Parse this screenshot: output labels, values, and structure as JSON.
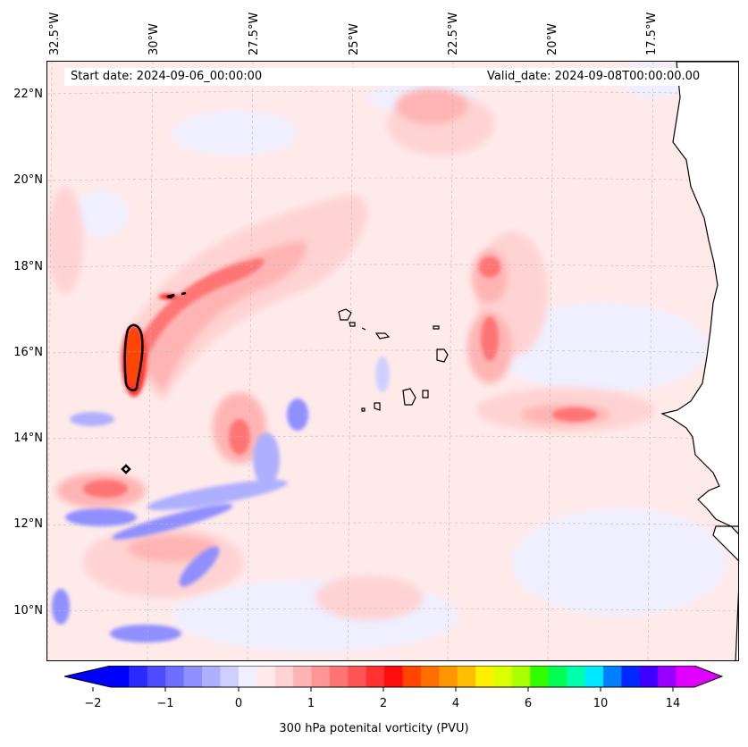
{
  "header": {
    "start_date": "Start date: 2024-09-06_00:00:00",
    "valid_date": "Valid_date: 2024-09-08T00:00:00.00"
  },
  "map": {
    "lon_ticks": [
      "32.5°W",
      "30°W",
      "27.5°W",
      "25°W",
      "22.5°W",
      "20°W",
      "17.5°W"
    ],
    "lat_ticks": [
      "22°N",
      "20°N",
      "18°N",
      "16°N",
      "14°N",
      "12°N",
      "10°N"
    ],
    "field": "300 hPa potential vorticity",
    "contour_line_color": "#000000"
  },
  "colorbar": {
    "label": "300 hPa potenital vorticity (PVU)",
    "tick_labels": [
      "−2",
      "−1",
      "0",
      "1",
      "2",
      "4",
      "6",
      "10",
      "14"
    ],
    "colors": [
      "#0000ff",
      "#2a2aff",
      "#4d4dff",
      "#6f6fff",
      "#8f8fff",
      "#afafff",
      "#cfcfff",
      "#efefff",
      "#ffeaea",
      "#ffd3d3",
      "#ffb4b4",
      "#ff9595",
      "#ff7474",
      "#ff5454",
      "#ff3232",
      "#ff0c0c",
      "#ff4500",
      "#ff6e00",
      "#ff9600",
      "#ffbe00",
      "#fff000",
      "#dcff00",
      "#aaff00",
      "#30ff00",
      "#00ff55",
      "#00ffaa",
      "#00e8ff",
      "#0080ff",
      "#0028ff",
      "#4000ff",
      "#9a00ff",
      "#e000ff"
    ]
  }
}
